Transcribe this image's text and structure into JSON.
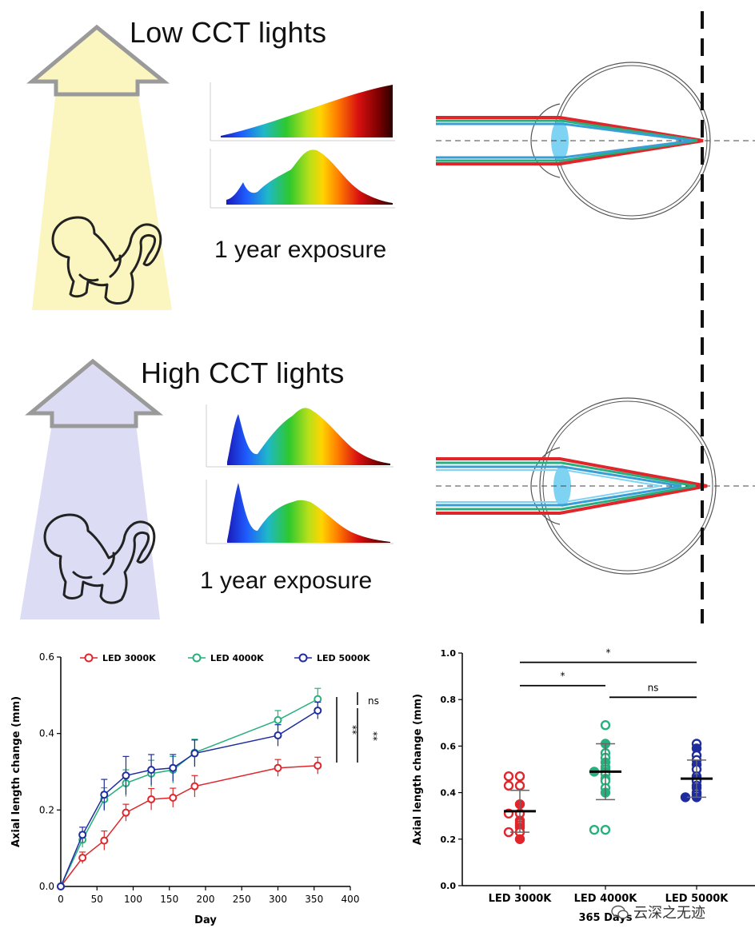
{
  "panels": {
    "low": {
      "title": "Low CCT lights",
      "exposure": "1 year exposure",
      "light_color": "#FBF6C0"
    },
    "high": {
      "title": "High CCT lights",
      "exposure": "1 year exposure",
      "light_color": "#DCDDF5"
    }
  },
  "watermark": "云深之无迹",
  "chart_data": [
    {
      "type": "line",
      "xlabel": "Day",
      "ylabel": "Axial length change (mm)",
      "xlim": [
        0,
        400
      ],
      "ylim": [
        0,
        0.6
      ],
      "xticks": [
        "0",
        "50",
        "100",
        "150",
        "200",
        "250",
        "300",
        "350",
        "400"
      ],
      "yticks": [
        "0.0",
        "0.2",
        "0.4",
        "0.6"
      ],
      "legend": "top",
      "x": [
        0,
        30,
        60,
        90,
        125,
        155,
        185,
        300,
        355
      ],
      "series": [
        {
          "name": "LED 3000K",
          "color": "#E0252B",
          "values": [
            0.0,
            0.075,
            0.12,
            0.193,
            0.228,
            0.232,
            0.262,
            0.31,
            0.316
          ],
          "errors": [
            0,
            0.015,
            0.025,
            0.022,
            0.028,
            0.025,
            0.028,
            0.022,
            0.022
          ]
        },
        {
          "name": "LED 4000K",
          "color": "#27B07D",
          "values": [
            0.0,
            0.122,
            0.228,
            0.27,
            0.295,
            0.305,
            0.35,
            0.435,
            0.49
          ],
          "errors": [
            0,
            0.02,
            0.03,
            0.035,
            0.035,
            0.035,
            0.035,
            0.025,
            0.028
          ]
        },
        {
          "name": "LED 5000K",
          "color": "#1F2C9E",
          "values": [
            0.0,
            0.135,
            0.24,
            0.29,
            0.305,
            0.31,
            0.348,
            0.395,
            0.46
          ],
          "errors": [
            0,
            0.02,
            0.04,
            0.05,
            0.04,
            0.035,
            0.035,
            0.028,
            0.022
          ]
        }
      ],
      "significance": [
        "**",
        "**",
        "ns"
      ]
    },
    {
      "type": "scatter",
      "xlabel": "365 Days",
      "ylabel": "Axial length change (mm)",
      "ylim": [
        0,
        1.0
      ],
      "yticks": [
        "0.0",
        "0.2",
        "0.4",
        "0.6",
        "0.8",
        "1.0"
      ],
      "categories": [
        "LED 3000K",
        "LED 4000K",
        "LED 5000K"
      ],
      "colors": [
        "#E0252B",
        "#27B07D",
        "#1F2C9E"
      ],
      "points": [
        [
          0.47,
          0.47,
          0.43,
          0.43,
          0.35,
          0.31,
          0.31,
          0.28,
          0.27,
          0.26,
          0.25,
          0.23,
          0.23,
          0.2
        ],
        [
          0.69,
          0.61,
          0.57,
          0.55,
          0.53,
          0.51,
          0.5,
          0.49,
          0.49,
          0.48,
          0.46,
          0.45,
          0.42,
          0.4,
          0.24,
          0.24
        ],
        [
          0.61,
          0.59,
          0.56,
          0.54,
          0.52,
          0.5,
          0.47,
          0.46,
          0.45,
          0.43,
          0.42,
          0.4,
          0.39,
          0.38,
          0.38
        ]
      ],
      "means": [
        0.32,
        0.49,
        0.46
      ],
      "sd_low": [
        0.23,
        0.37,
        0.38
      ],
      "sd_high": [
        0.41,
        0.61,
        0.54
      ],
      "comparisons": [
        {
          "label": "*",
          "from": 0,
          "to": 2,
          "y": 0.96
        },
        {
          "label": "*",
          "from": 0,
          "to": 1,
          "y": 0.86
        },
        {
          "label": "ns",
          "from": 1,
          "to": 2,
          "y": 0.81
        }
      ]
    }
  ]
}
